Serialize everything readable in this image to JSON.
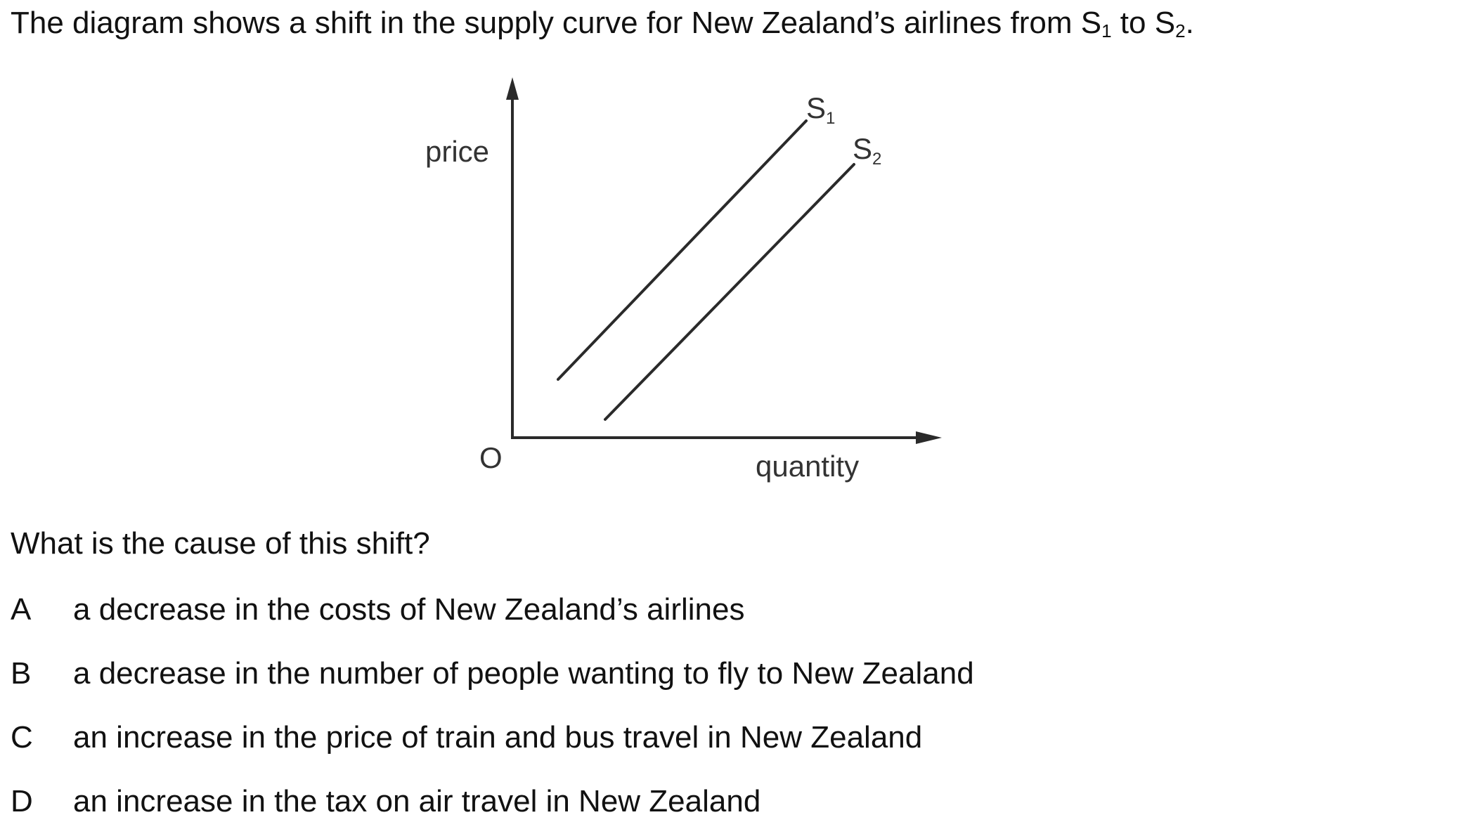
{
  "intro": {
    "text_before": "The diagram shows a shift in the supply curve for New Zealand’s airlines from ",
    "s1_main": "S",
    "s1_sub": "1",
    "middle": " to ",
    "s2_main": "S",
    "s2_sub": "2",
    "end": "."
  },
  "diagram": {
    "y_axis_label": "price",
    "x_axis_label": "quantity",
    "origin_label": "O",
    "curve1": {
      "main": "S",
      "sub": "1"
    },
    "curve2": {
      "main": "S",
      "sub": "2"
    },
    "line_color": "#2a2a2a"
  },
  "question": "What is the cause of this shift?",
  "options": [
    {
      "letter": "A",
      "text": "a decrease in the costs of New Zealand’s airlines"
    },
    {
      "letter": "B",
      "text": "a decrease in the number of people wanting to fly to New Zealand"
    },
    {
      "letter": "C",
      "text": "an increase in the price of train and bus travel in New Zealand"
    },
    {
      "letter": "D",
      "text": "an increase in the tax on air travel in New Zealand"
    }
  ]
}
